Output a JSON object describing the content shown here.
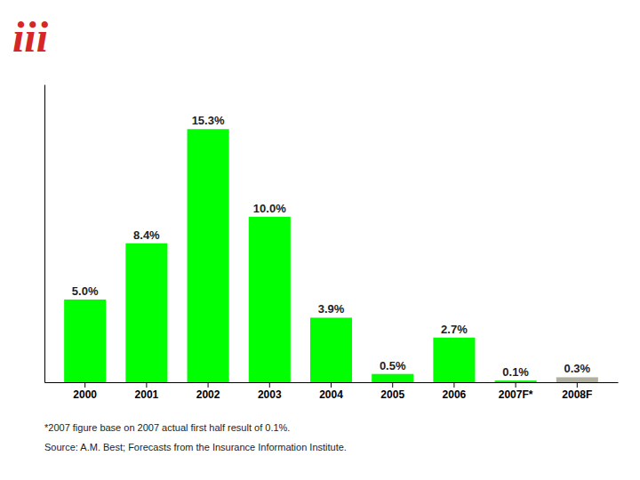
{
  "chart_data": {
    "type": "bar",
    "categories": [
      "2000",
      "2001",
      "2002",
      "2003",
      "2004",
      "2005",
      "2006",
      "2007F*",
      "2008F"
    ],
    "values": [
      5.0,
      8.4,
      15.3,
      10.0,
      3.9,
      0.5,
      2.7,
      0.1,
      0.3
    ],
    "value_labels": [
      "5.0%",
      "8.4%",
      "15.3%",
      "10.0%",
      "3.9%",
      "0.5%",
      "2.7%",
      "0.1%",
      "0.3%"
    ],
    "data_labels": true,
    "colors": [
      "#00FF00",
      "#00FF00",
      "#00FF00",
      "#00FF00",
      "#00FF00",
      "#00FF00",
      "#00FF00",
      "#00FF00",
      "#B0B0A0"
    ],
    "ylim": [
      0,
      18
    ],
    "tick_labels": "x",
    "grid": false,
    "annotations": [
      "iii",
      "*2007 figure base on 2007 actual first half result of 0.1%.",
      "Source:  A.M. Best; Forecasts from the Insurance Information Institute."
    ]
  }
}
